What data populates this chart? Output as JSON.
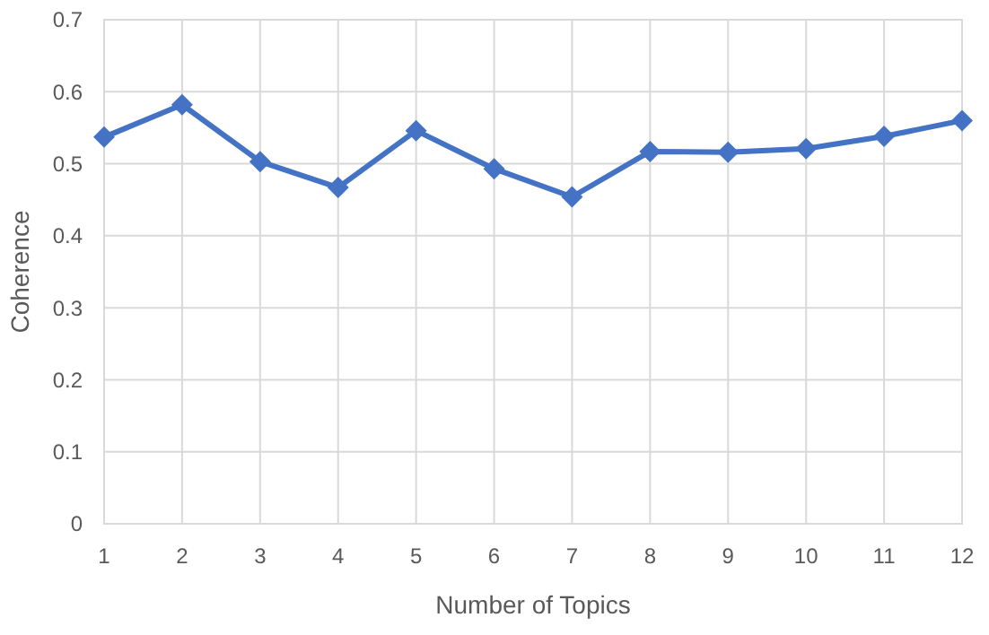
{
  "chart_data": {
    "type": "line",
    "xlabel": "Number of Topics",
    "ylabel": "Coherence",
    "x": [
      1,
      2,
      3,
      4,
      5,
      6,
      7,
      8,
      9,
      10,
      11,
      12
    ],
    "series": [
      {
        "color": "#4472c4",
        "values": [
          0.537,
          0.582,
          0.503,
          0.467,
          0.546,
          0.493,
          0.454,
          0.517,
          0.516,
          0.521,
          0.538,
          0.56
        ]
      }
    ],
    "xlim": [
      1,
      12
    ],
    "xticks": [
      1,
      2,
      3,
      4,
      5,
      6,
      7,
      8,
      9,
      10,
      11,
      12
    ],
    "ylim": [
      0,
      0.7
    ],
    "yticks": [
      0,
      0.1,
      0.2,
      0.3,
      0.4,
      0.5,
      0.6,
      0.7
    ],
    "grid": true,
    "marker": "diamond",
    "line_style": "solid"
  }
}
